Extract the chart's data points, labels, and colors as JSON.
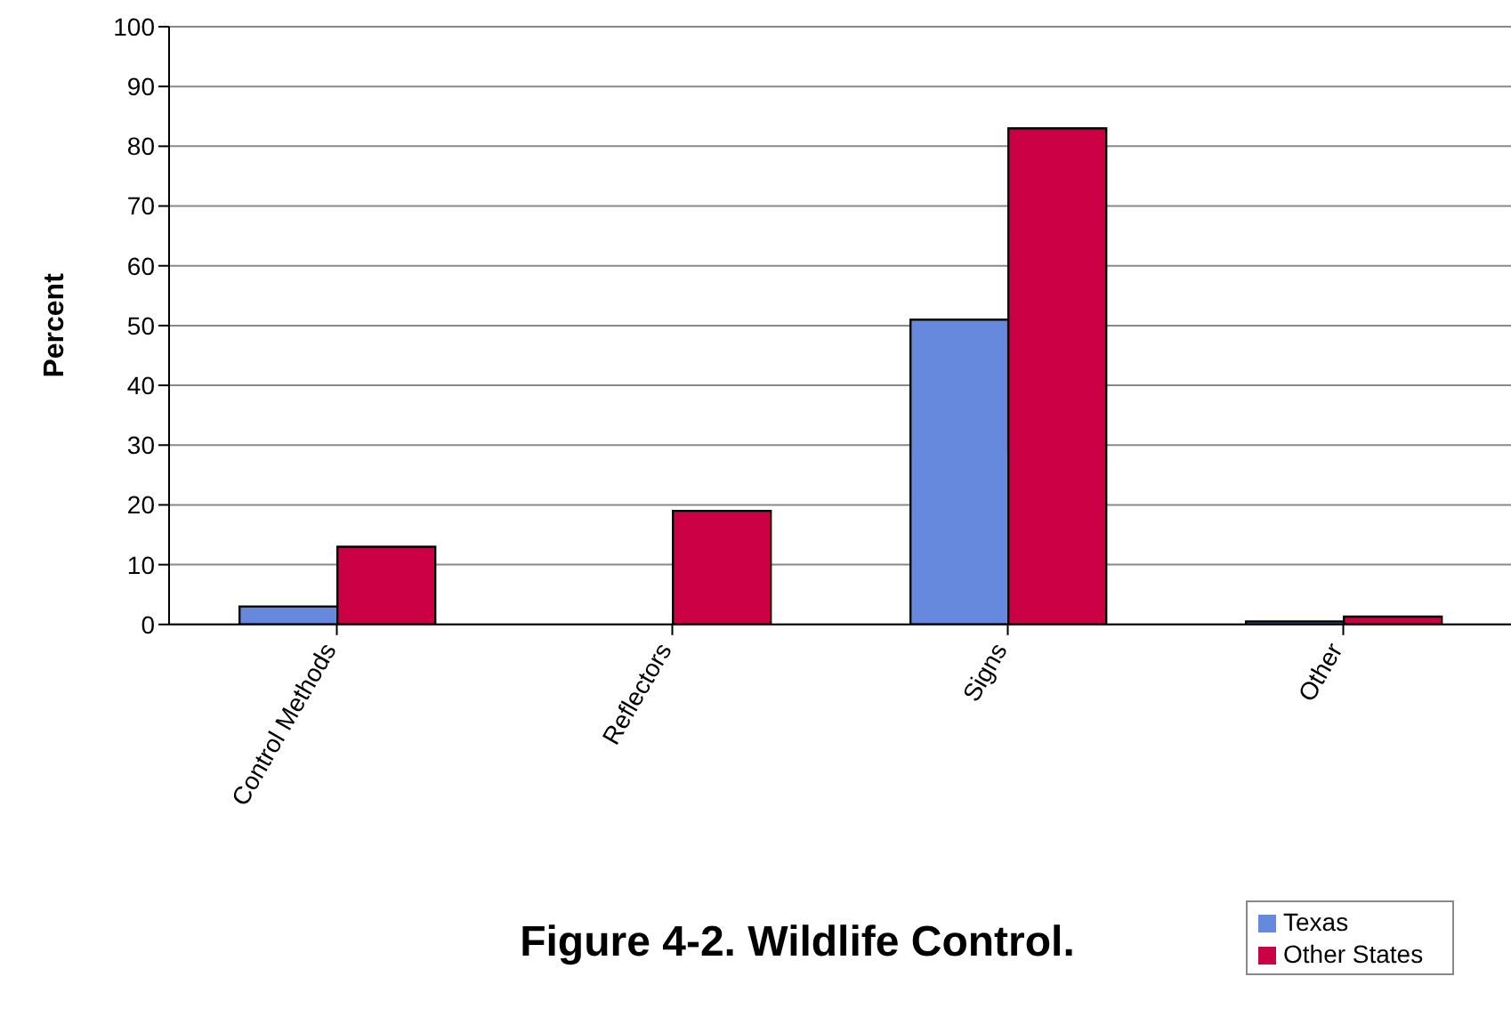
{
  "chart_data": {
    "type": "bar",
    "title": "Figure 4-2. Wildlife Control.",
    "ylabel": "Percent",
    "categories": [
      "Control Methods",
      "Reflectors",
      "Signs",
      "Other"
    ],
    "series": [
      {
        "name": "Texas",
        "color": "#6688dd",
        "values": [
          3,
          0,
          51,
          0.5
        ]
      },
      {
        "name": "Other States",
        "color": "#cc0044",
        "values": [
          13,
          19,
          83,
          1.3
        ]
      }
    ],
    "ylim": [
      0,
      100
    ],
    "yticks": [
      0,
      10,
      20,
      30,
      40,
      50,
      60,
      70,
      80,
      90,
      100
    ],
    "grid": "y",
    "legend": "bottom right"
  }
}
